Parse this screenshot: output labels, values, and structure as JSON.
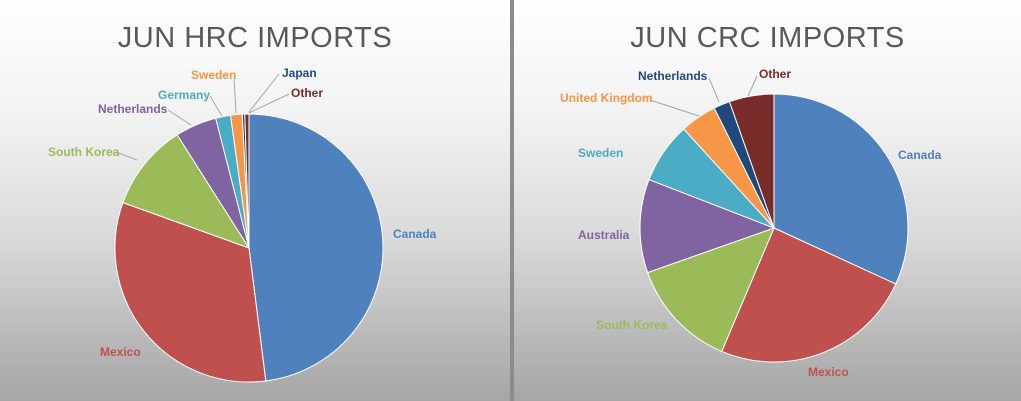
{
  "chart_data": [
    {
      "type": "pie",
      "title": "JUN HRC IMPORTS",
      "slices": [
        {
          "label": "Canada",
          "value": 48.0,
          "color": "#4F81BD"
        },
        {
          "label": "Mexico",
          "value": 32.5,
          "color": "#C0504D"
        },
        {
          "label": "South Korea",
          "value": 10.5,
          "color": "#9BBB59"
        },
        {
          "label": "Netherlands",
          "value": 5.0,
          "color": "#8064A2"
        },
        {
          "label": "Germany",
          "value": 1.8,
          "color": "#4BACC6"
        },
        {
          "label": "Sweden",
          "value": 1.4,
          "color": "#F79646"
        },
        {
          "label": "Japan",
          "value": 0.3,
          "color": "#1F497D"
        },
        {
          "label": "Other",
          "value": 0.5,
          "color": "#772C2A"
        }
      ]
    },
    {
      "type": "pie",
      "title": "JUN CRC IMPORTS",
      "slices": [
        {
          "label": "Canada",
          "value": 32.5,
          "color": "#4F81BD"
        },
        {
          "label": "Mexico",
          "value": 25.0,
          "color": "#C0504D"
        },
        {
          "label": "South Korea",
          "value": 13.5,
          "color": "#9BBB59"
        },
        {
          "label": "Australia",
          "value": 11.5,
          "color": "#8064A2"
        },
        {
          "label": "Sweden",
          "value": 7.5,
          "color": "#4BACC6"
        },
        {
          "label": "United Kingdom",
          "value": 4.5,
          "color": "#F79646"
        },
        {
          "label": "Netherlands",
          "value": 2.0,
          "color": "#1F497D"
        },
        {
          "label": "Other",
          "value": 5.5,
          "color": "#772C2A"
        }
      ]
    }
  ]
}
